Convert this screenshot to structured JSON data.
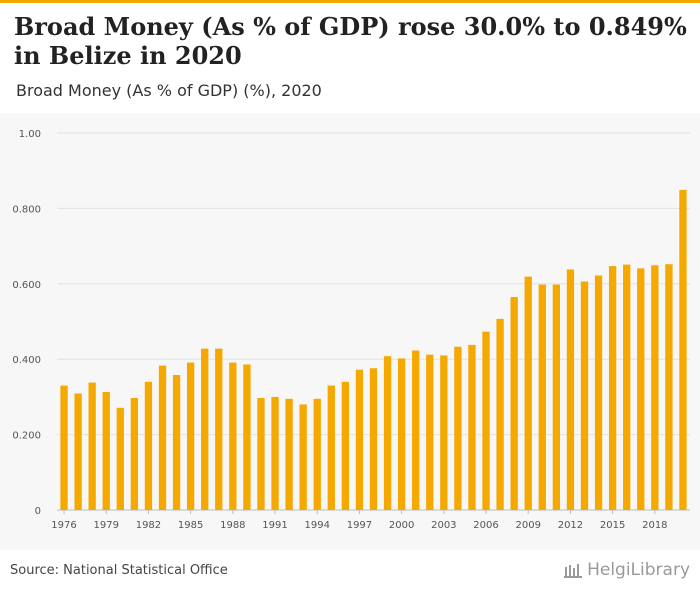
{
  "header": {
    "title": "Broad Money (As % of GDP) rose 30.0% to 0.849% in Belize in 2020",
    "subtitle": "Broad Money (As % of GDP) (%), 2020"
  },
  "footer": {
    "source": "Source: National Statistical Office",
    "brand": "HelgiLibrary"
  },
  "colors": {
    "accent": "#f2a900",
    "bar": "#f5a800",
    "panel": "#f7f7f7"
  },
  "chart_data": {
    "type": "bar",
    "categories": [
      "1976",
      "1977",
      "1978",
      "1979",
      "1980",
      "1981",
      "1982",
      "1983",
      "1984",
      "1985",
      "1986",
      "1987",
      "1988",
      "1989",
      "1990",
      "1991",
      "1992",
      "1993",
      "1994",
      "1995",
      "1996",
      "1997",
      "1998",
      "1999",
      "2000",
      "2001",
      "2002",
      "2003",
      "2004",
      "2005",
      "2006",
      "2007",
      "2008",
      "2009",
      "2010",
      "2011",
      "2012",
      "2013",
      "2014",
      "2015",
      "2016",
      "2017",
      "2018",
      "2019",
      "2020"
    ],
    "values": [
      0.33,
      0.309,
      0.338,
      0.313,
      0.271,
      0.297,
      0.34,
      0.383,
      0.358,
      0.391,
      0.428,
      0.428,
      0.391,
      0.386,
      0.297,
      0.3,
      0.295,
      0.28,
      0.295,
      0.33,
      0.34,
      0.372,
      0.376,
      0.408,
      0.402,
      0.423,
      0.412,
      0.41,
      0.433,
      0.438,
      0.473,
      0.507,
      0.565,
      0.619,
      0.598,
      0.598,
      0.638,
      0.606,
      0.622,
      0.647,
      0.651,
      0.641,
      0.649,
      0.652,
      0.849
    ],
    "x_tick_labels": [
      "1976",
      "1979",
      "1982",
      "1985",
      "1988",
      "1991",
      "1994",
      "1997",
      "2000",
      "2003",
      "2006",
      "2009",
      "2012",
      "2015",
      "2018"
    ],
    "y_tick_labels": [
      "0",
      "0.200",
      "0.400",
      "0.600",
      "0.800",
      "1.00"
    ],
    "y_ticks": [
      0,
      0.2,
      0.4,
      0.6,
      0.8,
      1.0
    ],
    "ylim": [
      0,
      1.0
    ],
    "grid": true,
    "xlabel": "",
    "ylabel": ""
  }
}
